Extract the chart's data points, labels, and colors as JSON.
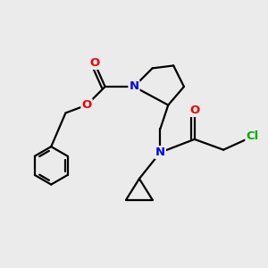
{
  "background_color": "#ebebeb",
  "atom_colors": {
    "C": "#000000",
    "N": "#0000ee",
    "O": "#ee0000",
    "Cl": "#00aa00"
  },
  "bond_color": "#000000",
  "bond_width": 1.6,
  "figsize": [
    3.0,
    3.0
  ],
  "dpi": 100,
  "xlim": [
    0,
    10
  ],
  "ylim": [
    0,
    10
  ]
}
